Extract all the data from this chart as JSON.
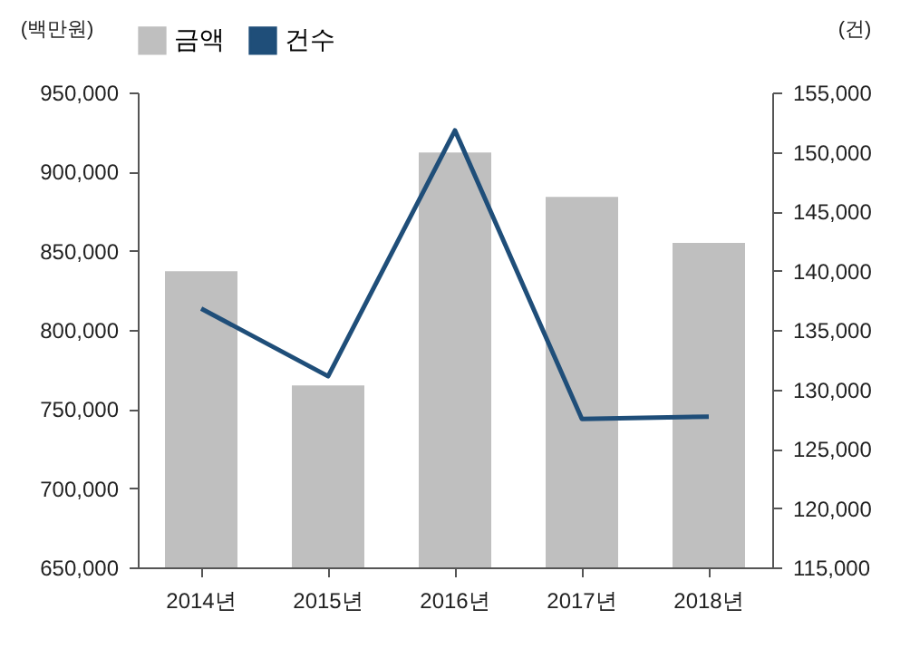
{
  "chart_data": {
    "type": "bar",
    "categories": [
      "2014년",
      "2015년",
      "2016년",
      "2017년",
      "2018년"
    ],
    "ylabel": "(백만원)",
    "y2label": "(건)",
    "series": [
      {
        "name": "금액",
        "color": "#bfbfbf",
        "values": [
          837000,
          765000,
          912000,
          884000,
          855000
        ]
      },
      {
        "name": "건수",
        "type": "line",
        "axis": "y2",
        "color": "#1f4e79",
        "values": [
          136800,
          131100,
          151800,
          127500,
          127700
        ]
      }
    ],
    "ylim": [
      650000,
      950000
    ],
    "yticks": [
      {
        "value": 650000,
        "label": "650,000"
      },
      {
        "value": 700000,
        "label": "700,000"
      },
      {
        "value": 750000,
        "label": "750,000"
      },
      {
        "value": 800000,
        "label": "800,000"
      },
      {
        "value": 850000,
        "label": "850,000"
      },
      {
        "value": 900000,
        "label": "900,000"
      },
      {
        "value": 950000,
        "label": "950,000"
      }
    ],
    "y2lim": [
      115000,
      155000
    ],
    "y2ticks": [
      {
        "value": 115000,
        "label": "115,000"
      },
      {
        "value": 120000,
        "label": "120,000"
      },
      {
        "value": 125000,
        "label": "125,000"
      },
      {
        "value": 130000,
        "label": "130,000"
      },
      {
        "value": 135000,
        "label": "135,000"
      },
      {
        "value": 140000,
        "label": "140,000"
      },
      {
        "value": 145000,
        "label": "145,000"
      },
      {
        "value": 150000,
        "label": "150,000"
      },
      {
        "value": 155000,
        "label": "155,000"
      }
    ],
    "grid": false,
    "legend": "top",
    "line_style": "solid",
    "marker": "none"
  }
}
